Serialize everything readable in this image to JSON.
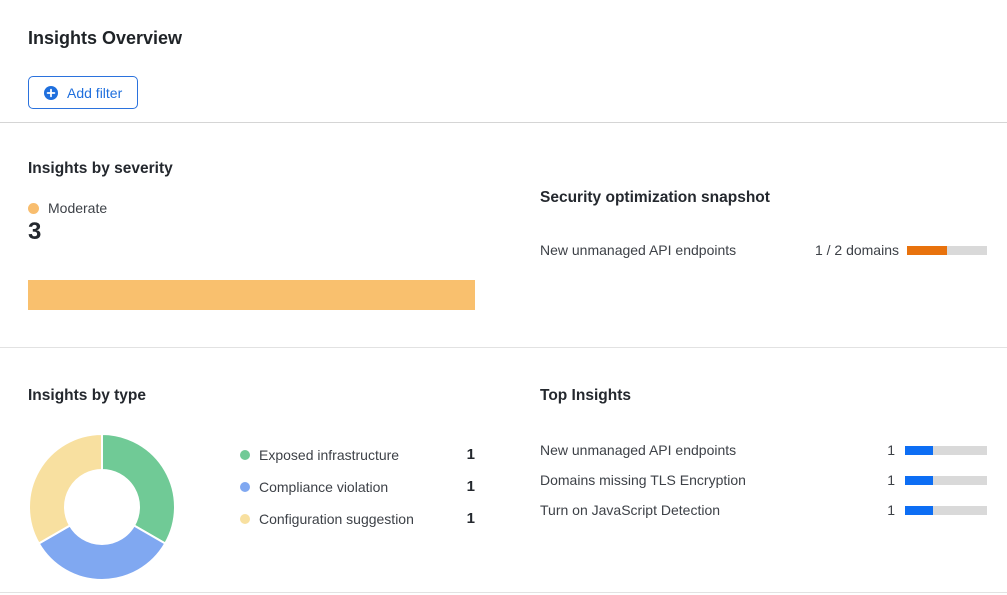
{
  "page": {
    "title": "Insights Overview"
  },
  "toolbar": {
    "add_filter_label": "Add filter"
  },
  "colors": {
    "accent_blue": "#1f6fdd",
    "progress_blue": "#0d6ef4",
    "progress_orange": "#e8720d",
    "severity_moderate": "#f9c06e",
    "track_gray": "#d9d9d9"
  },
  "severity_section": {
    "title": "Insights by severity",
    "legend_label": "Moderate",
    "legend_color": "#f8bd6e",
    "count": "3",
    "bar_color": "#f9c06e"
  },
  "snapshot_section": {
    "title": "Security optimization snapshot",
    "row": {
      "label": "New unmanaged API endpoints",
      "value": "1 / 2 domains",
      "progress_pct": 50
    }
  },
  "type_section": {
    "title": "Insights by type",
    "legend": [
      {
        "label": "Exposed infrastructure",
        "count": "1",
        "color": "#70ca96"
      },
      {
        "label": "Compliance violation",
        "count": "1",
        "color": "#80a8f1"
      },
      {
        "label": "Configuration suggestion",
        "count": "1",
        "color": "#f8e0a0"
      }
    ]
  },
  "top_insights_section": {
    "title": "Top Insights",
    "rows": [
      {
        "label": "New unmanaged API endpoints",
        "count": "1",
        "progress_pct": 34
      },
      {
        "label": "Domains missing TLS Encryption",
        "count": "1",
        "progress_pct": 34
      },
      {
        "label": "Turn on JavaScript Detection",
        "count": "1",
        "progress_pct": 34
      }
    ]
  },
  "chart_data": [
    {
      "type": "bar",
      "title": "Insights by severity",
      "orientation": "horizontal",
      "categories": [
        "Moderate"
      ],
      "values": [
        3
      ],
      "colors": [
        "#f9c06e"
      ],
      "legend_position": "top"
    },
    {
      "type": "bar",
      "title": "Security optimization snapshot",
      "categories": [
        "New unmanaged API endpoints"
      ],
      "values": [
        1
      ],
      "totals": [
        2
      ],
      "unit": "domains",
      "colors": [
        "#e8720d"
      ]
    },
    {
      "type": "pie",
      "title": "Insights by type",
      "donut": true,
      "labels": [
        "Exposed infrastructure",
        "Compliance violation",
        "Configuration suggestion"
      ],
      "values": [
        1,
        1,
        1
      ],
      "colors": [
        "#70ca96",
        "#80a8f1",
        "#f8e0a0"
      ],
      "start_angle_deg": 0,
      "legend_position": "right"
    },
    {
      "type": "bar",
      "title": "Top Insights",
      "orientation": "horizontal",
      "categories": [
        "New unmanaged API endpoints",
        "Domains missing TLS Encryption",
        "Turn on JavaScript Detection"
      ],
      "values": [
        1,
        1,
        1
      ],
      "value_max": 3,
      "colors": [
        "#0d6ef4",
        "#0d6ef4",
        "#0d6ef4"
      ]
    }
  ]
}
